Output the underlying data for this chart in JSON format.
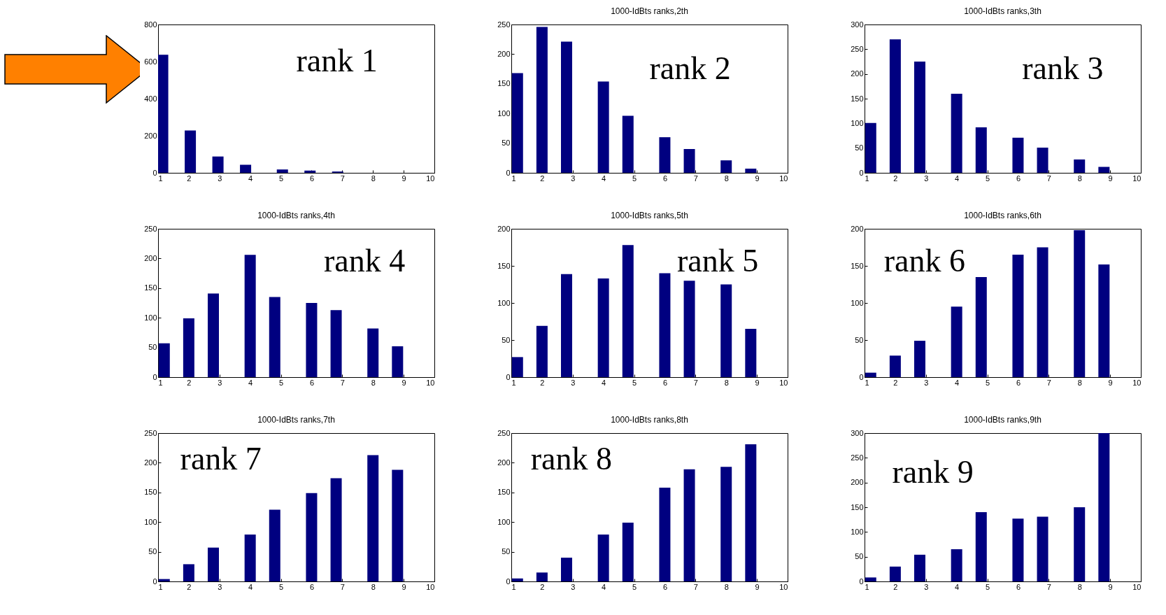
{
  "chart_data": [
    {
      "type": "bar",
      "x": [
        1.15,
        2.05,
        2.95,
        3.85,
        5.05,
        5.95,
        6.85
      ],
      "values": [
        637,
        228,
        88,
        43,
        18,
        12,
        7
      ],
      "color": "#000080",
      "xlim": [
        1,
        10
      ],
      "xticks": [
        1,
        2,
        3,
        4,
        5,
        6,
        7,
        8,
        9,
        10
      ],
      "ylim": [
        0,
        800
      ],
      "yticks": [
        0,
        200,
        400,
        600,
        800
      ],
      "annotations": [
        "rank 1"
      ]
    },
    {
      "type": "bar",
      "title": "1000-IdBts ranks,2th",
      "x": [
        1.2,
        2.0,
        2.8,
        4.0,
        4.8,
        6.0,
        6.8,
        8.0,
        8.8
      ],
      "values": [
        168,
        246,
        221,
        154,
        96,
        60,
        40,
        21,
        7
      ],
      "color": "#000080",
      "xlim": [
        1,
        10
      ],
      "xticks": [
        1,
        2,
        3,
        4,
        5,
        6,
        7,
        8,
        9,
        10
      ],
      "ylim": [
        0,
        250
      ],
      "yticks": [
        0,
        50,
        100,
        150,
        200,
        250
      ],
      "annotations": [
        "rank 2"
      ]
    },
    {
      "type": "bar",
      "title": "1000-IdBts ranks,3th",
      "x": [
        1.2,
        2.0,
        2.8,
        4.0,
        4.8,
        6.0,
        6.8,
        8.0,
        8.8
      ],
      "values": [
        101,
        270,
        225,
        160,
        92,
        71,
        51,
        27,
        12
      ],
      "color": "#000080",
      "xlim": [
        1,
        10
      ],
      "xticks": [
        1,
        2,
        3,
        4,
        5,
        6,
        7,
        8,
        9,
        10
      ],
      "ylim": [
        0,
        300
      ],
      "yticks": [
        0,
        50,
        100,
        150,
        200,
        250,
        300
      ],
      "annotations": [
        "rank 3"
      ]
    },
    {
      "type": "bar",
      "title": "1000-IdBts ranks,4th",
      "x": [
        1.2,
        2.0,
        2.8,
        4.0,
        4.8,
        6.0,
        6.8,
        8.0,
        8.8
      ],
      "values": [
        57,
        99,
        141,
        206,
        135,
        125,
        113,
        82,
        52
      ],
      "color": "#000080",
      "xlim": [
        1,
        10
      ],
      "xticks": [
        1,
        2,
        3,
        4,
        5,
        6,
        7,
        8,
        9,
        10
      ],
      "ylim": [
        0,
        250
      ],
      "yticks": [
        0,
        50,
        100,
        150,
        200,
        250
      ],
      "annotations": [
        "rank 4"
      ]
    },
    {
      "type": "bar",
      "title": "1000-IdBts ranks,5th",
      "x": [
        1.2,
        2.0,
        2.8,
        4.0,
        4.8,
        6.0,
        6.8,
        8.0,
        8.8
      ],
      "values": [
        27,
        69,
        139,
        133,
        178,
        140,
        130,
        125,
        65
      ],
      "color": "#000080",
      "xlim": [
        1,
        10
      ],
      "xticks": [
        1,
        2,
        3,
        4,
        5,
        6,
        7,
        8,
        9,
        10
      ],
      "ylim": [
        0,
        200
      ],
      "yticks": [
        0,
        50,
        100,
        150,
        200
      ],
      "annotations": [
        "rank 5"
      ]
    },
    {
      "type": "bar",
      "title": "1000-IdBts ranks,6th",
      "x": [
        1.2,
        2.0,
        2.8,
        4.0,
        4.8,
        6.0,
        6.8,
        8.0,
        8.8
      ],
      "values": [
        6,
        29,
        49,
        95,
        135,
        165,
        175,
        198,
        152
      ],
      "color": "#000080",
      "xlim": [
        1,
        10
      ],
      "xticks": [
        1,
        2,
        3,
        4,
        5,
        6,
        7,
        8,
        9,
        10
      ],
      "ylim": [
        0,
        200
      ],
      "yticks": [
        0,
        50,
        100,
        150,
        200
      ],
      "annotations": [
        "rank 6"
      ]
    },
    {
      "type": "bar",
      "title": "1000-IdBts ranks,7th",
      "x": [
        1.2,
        2.0,
        2.8,
        4.0,
        4.8,
        6.0,
        6.8,
        8.0,
        8.8
      ],
      "values": [
        4,
        29,
        57,
        79,
        121,
        149,
        174,
        213,
        188
      ],
      "color": "#000080",
      "xlim": [
        1,
        10
      ],
      "xticks": [
        1,
        2,
        3,
        4,
        5,
        6,
        7,
        8,
        9,
        10
      ],
      "ylim": [
        0,
        250
      ],
      "yticks": [
        0,
        50,
        100,
        150,
        200,
        250
      ],
      "annotations": [
        "rank 7"
      ]
    },
    {
      "type": "bar",
      "title": "1000-IdBts ranks,8th",
      "x": [
        1.2,
        2.0,
        2.8,
        4.0,
        4.8,
        6.0,
        6.8,
        8.0,
        8.8
      ],
      "values": [
        5,
        15,
        40,
        79,
        99,
        158,
        189,
        193,
        231
      ],
      "color": "#000080",
      "xlim": [
        1,
        10
      ],
      "xticks": [
        1,
        2,
        3,
        4,
        5,
        6,
        7,
        8,
        9,
        10
      ],
      "ylim": [
        0,
        250
      ],
      "yticks": [
        0,
        50,
        100,
        150,
        200,
        250
      ],
      "annotations": [
        "rank 8"
      ]
    },
    {
      "type": "bar",
      "title": "1000-IdBts ranks,9th",
      "x": [
        1.2,
        2.0,
        2.8,
        4.0,
        4.8,
        6.0,
        6.8,
        8.0,
        8.8
      ],
      "values": [
        8,
        30,
        54,
        65,
        140,
        127,
        131,
        150,
        300
      ],
      "color": "#000080",
      "xlim": [
        1,
        10
      ],
      "xticks": [
        1,
        2,
        3,
        4,
        5,
        6,
        7,
        8,
        9,
        10
      ],
      "ylim": [
        0,
        300
      ],
      "yticks": [
        0,
        50,
        100,
        150,
        200,
        250,
        300
      ],
      "annotations": [
        "rank 9"
      ]
    }
  ]
}
